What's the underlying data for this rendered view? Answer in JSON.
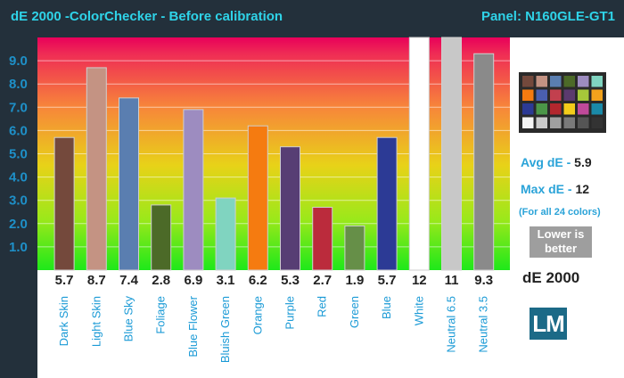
{
  "header": {
    "title": "dE 2000 -ColorChecker  - Before calibration",
    "panel": "Panel: N160GLE-GT1"
  },
  "chart_data": {
    "type": "bar",
    "title": "dE 2000 -ColorChecker  - Before calibration",
    "xlabel": "",
    "ylabel": "",
    "ylim": [
      0,
      10
    ],
    "yticks": [
      "1.0",
      "2.0",
      "3.0",
      "4.0",
      "5.0",
      "6.0",
      "7.0",
      "8.0",
      "9.0"
    ],
    "grid": true,
    "categories": [
      "Dark Skin",
      "Light Skin",
      "Blue Sky",
      "Foliage",
      "Blue Flower",
      "Bluish Green",
      "Orange",
      "Purple",
      "Red",
      "Green",
      "Blue",
      "White",
      "Neutral 6.5",
      "Neutral 3.5"
    ],
    "values": [
      5.7,
      8.7,
      7.4,
      2.8,
      6.9,
      3.1,
      6.2,
      5.3,
      2.7,
      1.9,
      5.7,
      12,
      11,
      9.3
    ],
    "value_labels": [
      "5.7",
      "8.7",
      "7.4",
      "2.8",
      "6.9",
      "3.1",
      "6.2",
      "5.3",
      "2.7",
      "1.9",
      "5.7",
      "12",
      "11",
      "9.3"
    ],
    "bar_colors": [
      "#74493c",
      "#c49383",
      "#5a7eb0",
      "#4c6a28",
      "#9d8cc0",
      "#80d4c0",
      "#f57b10",
      "#573e74",
      "#bb2b3c",
      "#668f48",
      "#2c3a95",
      "#ffffff",
      "#c8c8c8",
      "#8a8a8a"
    ]
  },
  "side": {
    "avg_label": "Avg dE - ",
    "avg_value": "5.9",
    "max_label": "Max dE - ",
    "max_value": "12",
    "note": "(For all 24 colors)",
    "lower_line1": "Lower is",
    "lower_line2": "better",
    "metric_label": "dE 2000",
    "logo_text": "LM",
    "swatches": [
      "#74493c",
      "#c49383",
      "#5a7eb0",
      "#4c6a28",
      "#9d8cc0",
      "#80d4c0",
      "#f57b10",
      "#4a5fb0",
      "#c2404e",
      "#5b3a6e",
      "#a6c83a",
      "#f2a21c",
      "#2c3a95",
      "#4b9648",
      "#b3272e",
      "#f3cc1a",
      "#c0499a",
      "#1a8aa8",
      "#f4f4f4",
      "#cacaca",
      "#a0a0a0",
      "#7a7a7a",
      "#555555",
      "#333333"
    ]
  }
}
